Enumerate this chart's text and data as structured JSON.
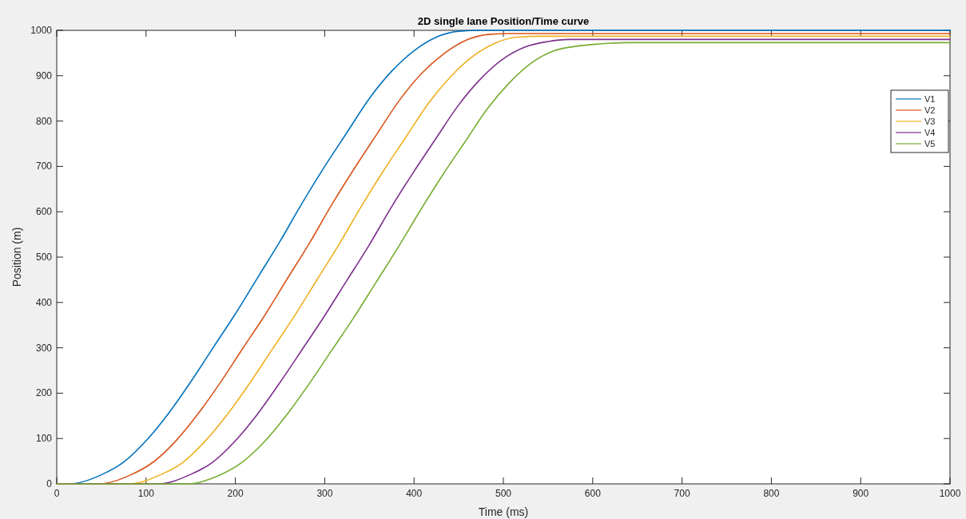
{
  "chart_data": {
    "type": "line",
    "title": "2D single lane Position/Time curve",
    "xlabel": "Time (ms)",
    "ylabel": "Position (m)",
    "xlim": [
      0,
      1000
    ],
    "xticks": [
      0,
      100,
      200,
      300,
      400,
      500,
      600,
      700,
      800,
      900,
      1000
    ],
    "ylim": [
      0,
      1000
    ],
    "yticks": [
      0,
      100,
      200,
      300,
      400,
      500,
      600,
      700,
      800,
      900,
      1000
    ],
    "grid": false,
    "legend": "top right",
    "series": [
      {
        "name": "V1",
        "color": "#0072bd",
        "x": [
          0,
          15,
          50,
          75,
          100,
          125,
          150,
          175,
          200,
          225,
          250,
          275,
          300,
          325,
          350,
          375,
          400,
          425,
          450,
          475,
          1000
        ],
        "values": [
          0,
          0,
          20,
          48,
          95,
          155,
          225,
          300,
          375,
          455,
          535,
          620,
          700,
          775,
          850,
          910,
          955,
          985,
          998,
          1000,
          1000
        ]
      },
      {
        "name": "V2",
        "color": "#d95319",
        "x": [
          0,
          48,
          83,
          108,
          133,
          158,
          183,
          208,
          233,
          258,
          283,
          308,
          333,
          358,
          383,
          408,
          433,
          458,
          483,
          508,
          1000
        ],
        "values": [
          0,
          0,
          20,
          48,
          94,
          154,
          223,
          298,
          372,
          452,
          531,
          616,
          695,
          770,
          844,
          904,
          948,
          978,
          991,
          993,
          993
        ]
      },
      {
        "name": "V3",
        "color": "#edb120",
        "x": [
          0,
          81,
          116,
          141,
          166,
          191,
          216,
          241,
          266,
          291,
          316,
          341,
          366,
          391,
          416,
          441,
          466,
          491,
          516,
          541,
          1000
        ],
        "values": [
          0,
          0,
          20,
          47,
          94,
          153,
          222,
          296,
          370,
          449,
          528,
          612,
          691,
          765,
          839,
          898,
          943,
          972,
          985,
          987,
          987
        ]
      },
      {
        "name": "V4",
        "color": "#7e2f8e",
        "x": [
          0,
          114,
          149,
          174,
          199,
          224,
          249,
          274,
          299,
          324,
          349,
          374,
          399,
          424,
          449,
          474,
          499,
          524,
          549,
          574,
          1000
        ],
        "values": [
          0,
          0,
          20,
          47,
          93,
          152,
          221,
          294,
          368,
          446,
          524,
          608,
          686,
          760,
          833,
          892,
          936,
          963,
          975,
          980,
          980
        ]
      },
      {
        "name": "V5",
        "color": "#77ac30",
        "x": [
          0,
          147,
          182,
          207,
          232,
          257,
          282,
          307,
          332,
          357,
          382,
          407,
          432,
          457,
          482,
          507,
          532,
          557,
          582,
          607,
          640,
          1000
        ],
        "values": [
          0,
          0,
          19,
          47,
          92,
          151,
          219,
          292,
          365,
          443,
          521,
          603,
          681,
          754,
          827,
          885,
          929,
          955,
          965,
          970,
          973,
          973
        ]
      }
    ]
  }
}
